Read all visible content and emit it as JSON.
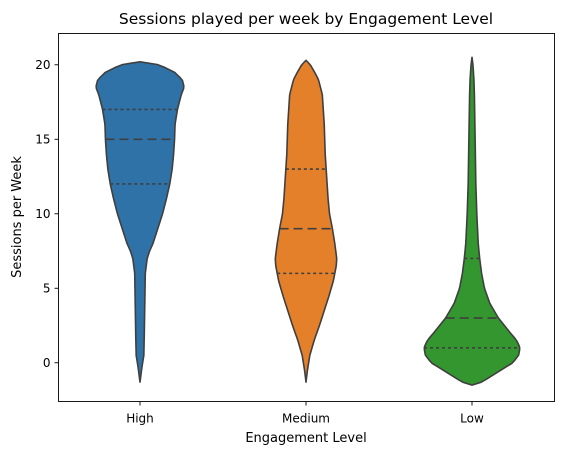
{
  "chart_data": {
    "type": "violin",
    "title": "Sessions played per week by Engagement Level",
    "xlabel": "Engagement Level",
    "ylabel": "Sessions per Week",
    "categories": [
      "High",
      "Medium",
      "Low"
    ],
    "ylim": [
      -2.6,
      22.1
    ],
    "yticks": [
      0,
      5,
      10,
      15,
      20
    ],
    "grid": false,
    "series": [
      {
        "category": "High",
        "color": "#2e72a8",
        "range": [
          -1.3,
          20.2
        ],
        "quartiles": [
          12,
          15,
          17
        ],
        "density_profile": [
          [
            -1.3,
            0.0
          ],
          [
            -0.3,
            0.04
          ],
          [
            0.5,
            0.08
          ],
          [
            2,
            0.09
          ],
          [
            4,
            0.1
          ],
          [
            6,
            0.11
          ],
          [
            7,
            0.15
          ],
          [
            7.5,
            0.2
          ],
          [
            8,
            0.27
          ],
          [
            9,
            0.37
          ],
          [
            10,
            0.47
          ],
          [
            11,
            0.55
          ],
          [
            12,
            0.62
          ],
          [
            13,
            0.67
          ],
          [
            14,
            0.7
          ],
          [
            15,
            0.72
          ],
          [
            16,
            0.73
          ],
          [
            17,
            0.78
          ],
          [
            18,
            0.86
          ],
          [
            18.5,
            0.92
          ],
          [
            19,
            0.88
          ],
          [
            19.5,
            0.72
          ],
          [
            20,
            0.4
          ],
          [
            20.2,
            0.0
          ]
        ]
      },
      {
        "category": "Medium",
        "color": "#e5802a",
        "range": [
          -1.3,
          20.3
        ],
        "quartiles": [
          6,
          9,
          13
        ],
        "density_profile": [
          [
            -1.3,
            0.0
          ],
          [
            -0.5,
            0.03
          ],
          [
            0.5,
            0.08
          ],
          [
            1.5,
            0.17
          ],
          [
            2.5,
            0.28
          ],
          [
            3.5,
            0.38
          ],
          [
            4.5,
            0.48
          ],
          [
            5.5,
            0.57
          ],
          [
            6.5,
            0.63
          ],
          [
            7,
            0.64
          ],
          [
            8,
            0.6
          ],
          [
            9,
            0.55
          ],
          [
            10,
            0.49
          ],
          [
            11,
            0.46
          ],
          [
            12,
            0.44
          ],
          [
            13,
            0.42
          ],
          [
            14,
            0.4
          ],
          [
            15,
            0.39
          ],
          [
            16,
            0.38
          ],
          [
            17,
            0.36
          ],
          [
            18,
            0.34
          ],
          [
            19,
            0.26
          ],
          [
            19.5,
            0.18
          ],
          [
            20,
            0.09
          ],
          [
            20.3,
            0.0
          ]
        ]
      },
      {
        "category": "Low",
        "color": "#34962f",
        "range": [
          -1.5,
          20.5
        ],
        "quartiles": [
          1,
          3,
          7
        ],
        "density_profile": [
          [
            -1.5,
            0.0
          ],
          [
            -1.3,
            0.2
          ],
          [
            -0.5,
            0.6
          ],
          [
            0,
            0.85
          ],
          [
            0.5,
            0.97
          ],
          [
            1,
            1.0
          ],
          [
            1.5,
            0.93
          ],
          [
            2,
            0.8
          ],
          [
            3,
            0.55
          ],
          [
            4,
            0.37
          ],
          [
            5,
            0.26
          ],
          [
            6,
            0.2
          ],
          [
            7,
            0.16
          ],
          [
            8,
            0.13
          ],
          [
            10,
            0.1
          ],
          [
            12,
            0.08
          ],
          [
            14,
            0.07
          ],
          [
            16,
            0.06
          ],
          [
            18,
            0.05
          ],
          [
            19,
            0.04
          ],
          [
            20,
            0.02
          ],
          [
            20.5,
            0.0
          ]
        ]
      }
    ]
  }
}
